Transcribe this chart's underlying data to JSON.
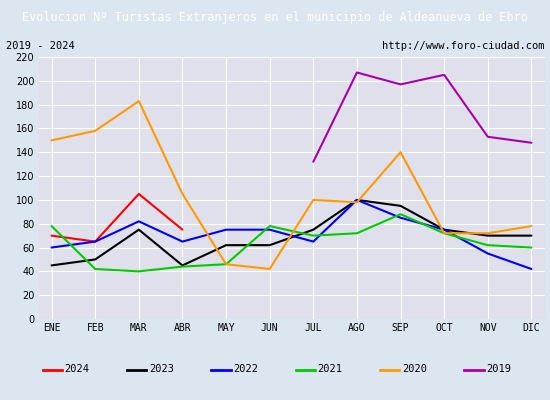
{
  "title": "Evolucion Nº Turistas Extranjeros en el municipio de Aldeanueva de Ebro",
  "subtitle_left": "2019 - 2024",
  "subtitle_right": "http://www.foro-ciudad.com",
  "months": [
    "ENE",
    "FEB",
    "MAR",
    "ABR",
    "MAY",
    "JUN",
    "JUL",
    "AGO",
    "SEP",
    "OCT",
    "NOV",
    "DIC"
  ],
  "ylim": [
    0,
    220
  ],
  "yticks": [
    0,
    20,
    40,
    60,
    80,
    100,
    120,
    140,
    160,
    180,
    200,
    220
  ],
  "series": {
    "2024": {
      "color": "#ff0000",
      "values": [
        70,
        65,
        105,
        75,
        null,
        null,
        null,
        null,
        null,
        null,
        null,
        null
      ]
    },
    "2023": {
      "color": "#000000",
      "values": [
        45,
        50,
        75,
        45,
        62,
        62,
        75,
        100,
        95,
        75,
        70,
        70
      ]
    },
    "2022": {
      "color": "#0000ff",
      "values": [
        60,
        65,
        82,
        65,
        75,
        75,
        65,
        100,
        85,
        75,
        55,
        42
      ]
    },
    "2021": {
      "color": "#00cc00",
      "values": [
        78,
        42,
        40,
        44,
        46,
        78,
        70,
        72,
        88,
        72,
        62,
        60
      ]
    },
    "2020": {
      "color": "#ff9900",
      "values": [
        150,
        158,
        183,
        105,
        46,
        42,
        100,
        98,
        140,
        72,
        72,
        78
      ]
    },
    "2019": {
      "color": "#aa00aa",
      "values": [
        null,
        null,
        null,
        null,
        null,
        null,
        132,
        207,
        197,
        205,
        153,
        148
      ]
    }
  },
  "title_bg_color": "#4472c4",
  "title_font_color": "#ffffff",
  "plot_bg_color": "#e0e0ec",
  "outer_bg_color": "#dce6f1",
  "grid_color": "#ffffff",
  "subtitle_box_color": "#ffffff",
  "legend_order": [
    "2024",
    "2023",
    "2022",
    "2021",
    "2020",
    "2019"
  ]
}
